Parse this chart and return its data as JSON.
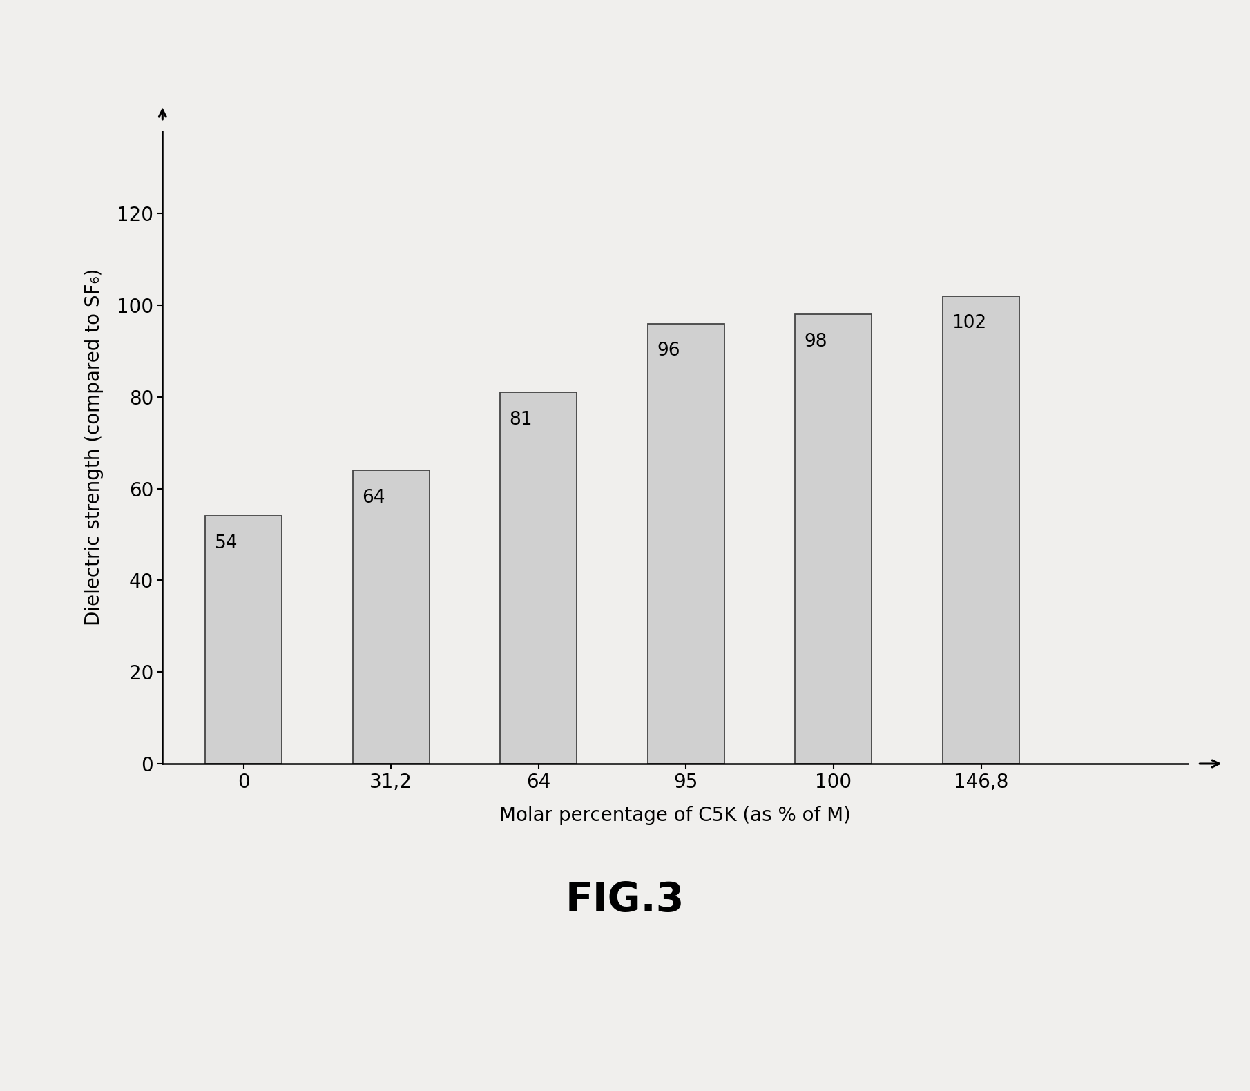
{
  "categories": [
    "0",
    "31,2",
    "64",
    "95",
    "100",
    "146,8"
  ],
  "values": [
    54,
    64,
    81,
    96,
    98,
    102
  ],
  "bar_color": "#d0d0d0",
  "bar_edgecolor": "#444444",
  "xlabel": "Molar percentage of C5K (as % of M)",
  "ylabel": "Dielectric strength (compared to SF₆)",
  "fig_label": "FIG.3",
  "yticks": [
    0,
    20,
    40,
    60,
    80,
    100,
    120
  ],
  "ylim": [
    0,
    138
  ],
  "label_fontsize": 20,
  "tick_fontsize": 20,
  "bar_label_fontsize": 19,
  "fig_label_fontsize": 42,
  "background_color": "#f0efed"
}
